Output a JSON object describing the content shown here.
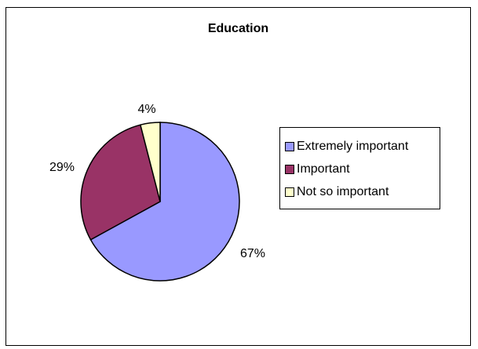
{
  "chart_data": {
    "type": "pie",
    "title": "Education",
    "categories": [
      "Extremely important",
      "Important",
      "Not so important"
    ],
    "values": [
      67,
      29,
      4
    ],
    "labels": [
      "67%",
      "29%",
      "4%"
    ],
    "colors": [
      "#9999ff",
      "#993366",
      "#ffffcc"
    ],
    "legend_position": "right"
  }
}
